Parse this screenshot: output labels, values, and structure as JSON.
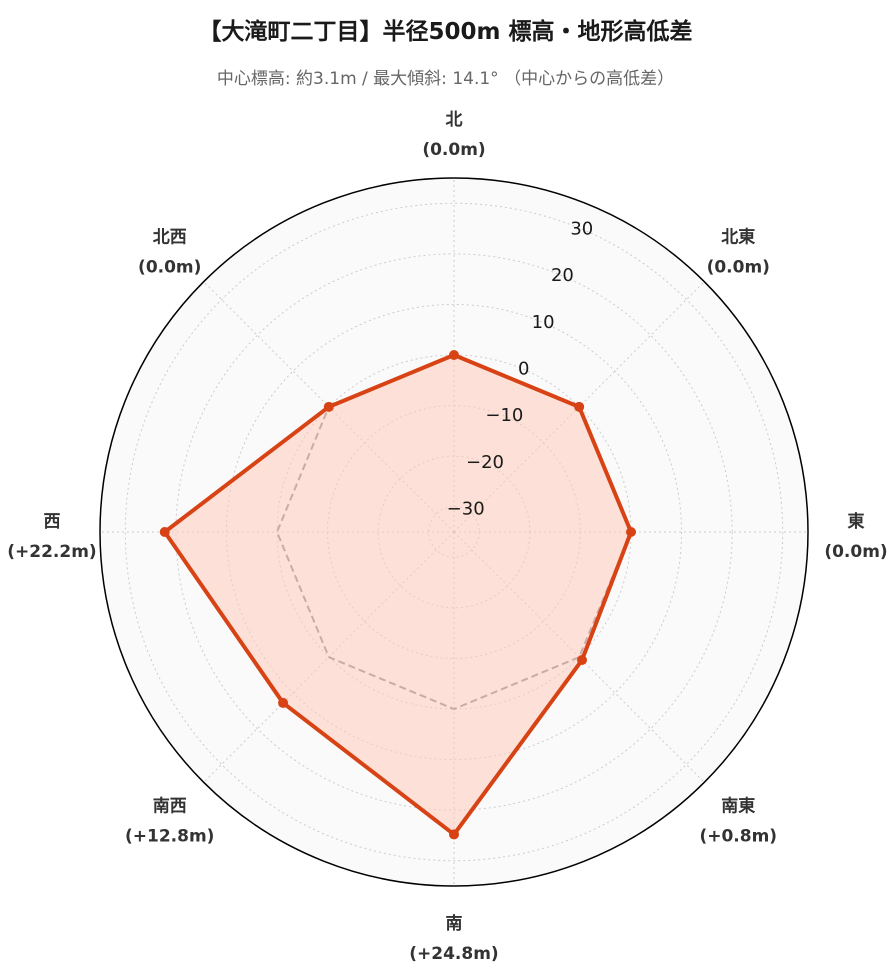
{
  "title": "【大滝町二丁目】半径500m 標高・地形高低差",
  "subtitle": "中心標高: 約3.1m / 最大傾斜: 14.1° （中心からの高低差）",
  "chart_data": {
    "type": "radar",
    "directions": [
      "北",
      "北東",
      "東",
      "南東",
      "南",
      "南西",
      "西",
      "北西"
    ],
    "direction_values": [
      "(0.0m)",
      "(0.0m)",
      "(0.0m)",
      "(+0.8m)",
      "(+24.8m)",
      "(+12.8m)",
      "(+22.2m)",
      "(0.0m)"
    ],
    "series": [
      {
        "values": [
          0.0,
          0.0,
          0.0,
          0.8,
          24.8,
          12.8,
          22.2,
          0.0
        ],
        "color": "#d84315",
        "fill": "#ffccbc"
      },
      {
        "values": [
          0,
          0,
          0,
          0,
          0,
          0,
          0,
          0
        ],
        "color": "#888888",
        "dash": true
      }
    ],
    "r_ticks": [
      -30,
      -20,
      -10,
      0,
      10,
      20,
      30
    ],
    "r_range": [
      -35,
      35
    ],
    "grid": true,
    "background": "#fafafa"
  }
}
